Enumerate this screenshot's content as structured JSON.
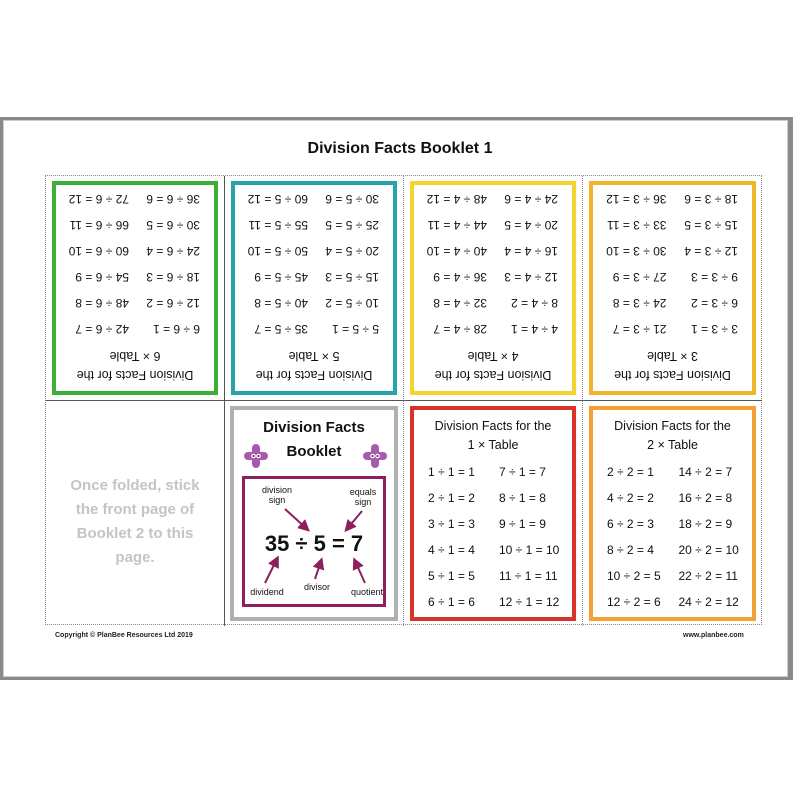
{
  "title": "Division Facts Booklet 1",
  "colors": {
    "green": "#3cb034",
    "teal": "#2aa3a8",
    "yellow": "#f3d42c",
    "gold": "#f0b62a",
    "red": "#d9342b",
    "orange": "#f2a234",
    "grey": "#b0b0b0",
    "purple": "#8e1f5e"
  },
  "cards": [
    {
      "heading1": "Division Facts for the",
      "heading2": "6 × Table",
      "color": "#3cb034",
      "upside_down": true,
      "left": [
        "6 ÷ 6 = 1",
        "12 ÷ 6 = 2",
        "18 ÷ 6 = 3",
        "24 ÷ 6 = 4",
        "30 ÷ 6 = 5",
        "36 ÷ 6 = 6"
      ],
      "right": [
        "42 ÷ 6 = 7",
        "48 ÷ 6 = 8",
        "54 ÷ 6 = 9",
        "60 ÷ 6 = 10",
        "66 ÷ 6 = 11",
        "72 ÷ 6 = 12"
      ]
    },
    {
      "heading1": "Division Facts for the",
      "heading2": "5 × Table",
      "color": "#2aa3a8",
      "upside_down": true,
      "left": [
        "5 ÷ 5 = 1",
        "10 ÷ 5 = 2",
        "15 ÷ 5 = 3",
        "20 ÷ 5 = 4",
        "25 ÷ 5 = 5",
        "30 ÷ 5 = 6"
      ],
      "right": [
        "35 ÷ 5 = 7",
        "40 ÷ 5 = 8",
        "45 ÷ 5 = 9",
        "50 ÷ 5 = 10",
        "55 ÷ 5 = 11",
        "60 ÷ 5 = 12"
      ]
    },
    {
      "heading1": "Division Facts for the",
      "heading2": "4 × Table",
      "color": "#f3d42c",
      "upside_down": true,
      "left": [
        "4 ÷ 4 = 1",
        "8 ÷ 4 = 2",
        "12 ÷ 4 = 3",
        "16 ÷ 4 = 4",
        "20 ÷ 4 = 5",
        "24 ÷ 4 = 6"
      ],
      "right": [
        "28 ÷ 4 = 7",
        "32 ÷ 4 = 8",
        "36 ÷ 4 = 9",
        "40 ÷ 4 = 10",
        "44 ÷ 4 = 11",
        "48 ÷ 4 = 12"
      ]
    },
    {
      "heading1": "Division Facts for the",
      "heading2": "3 × Table",
      "color": "#f0b62a",
      "upside_down": true,
      "left": [
        "3 ÷ 3 = 1",
        "6 ÷ 3 = 2",
        "9 ÷ 3 = 3",
        "12 ÷ 3 = 4",
        "15 ÷ 3 = 5",
        "18 ÷ 3 = 6"
      ],
      "right": [
        "21 ÷ 3 = 7",
        "24 ÷ 3 = 8",
        "27 ÷ 3 = 9",
        "30 ÷ 3 = 10",
        "33 ÷ 3 = 11",
        "36 ÷ 3 = 12"
      ]
    },
    {
      "heading1": "Division Facts for the",
      "heading2": "1 × Table",
      "color": "#d9342b",
      "upside_down": false,
      "left": [
        "1 ÷ 1 = 1",
        "2 ÷ 1 = 2",
        "3 ÷ 1 = 3",
        "4 ÷ 1 = 4",
        "5 ÷ 1 = 5",
        "6 ÷ 1 = 6"
      ],
      "right": [
        "7 ÷ 1 = 7",
        "8 ÷ 1 = 8",
        "9 ÷ 1 = 9",
        "10 ÷ 1 = 10",
        "11 ÷ 1 = 11",
        "12 ÷ 1 = 12"
      ]
    },
    {
      "heading1": "Division Facts for the",
      "heading2": "2 × Table",
      "color": "#f2a234",
      "upside_down": false,
      "left": [
        "2 ÷ 2 = 1",
        "4 ÷ 2 = 2",
        "6 ÷ 2 = 3",
        "8 ÷ 2 = 4",
        "10 ÷ 2 = 5",
        "12 ÷ 2 = 6"
      ],
      "right": [
        "14 ÷ 2 = 7",
        "16 ÷ 2 = 8",
        "18 ÷ 2 = 9",
        "20 ÷ 2 = 10",
        "22 ÷ 2 = 11",
        "24 ÷ 2 = 12"
      ]
    }
  ],
  "note": "Once folded, stick the front page of Booklet 2 to this page.",
  "cover": {
    "title1": "Division Facts",
    "title2": "Booklet",
    "equation": "35 ÷ 5 = 7",
    "labels": {
      "division_sign": "division sign",
      "equals_sign": "equals sign",
      "dividend": "dividend",
      "divisor": "divisor",
      "quotient": "quotient"
    }
  },
  "footer": {
    "copyright": "Copyright © PlanBee Resources Ltd 2019",
    "website": "www.planbee.com"
  }
}
